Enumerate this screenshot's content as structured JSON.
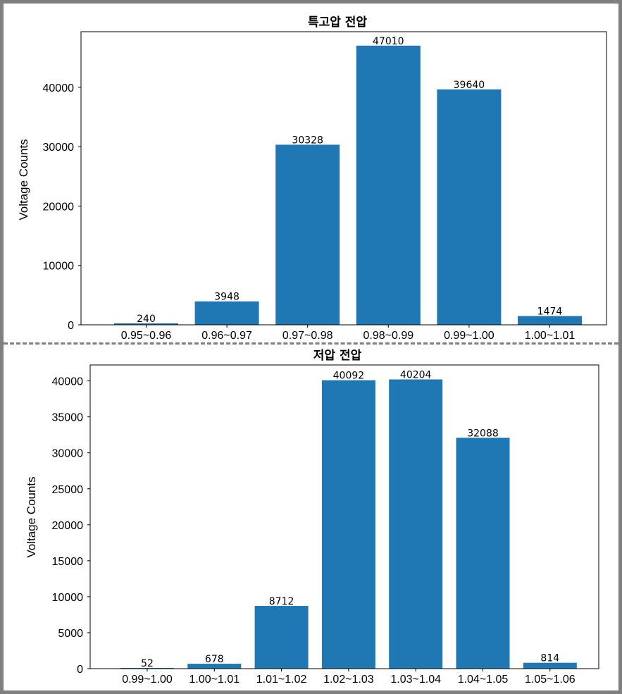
{
  "chart_data": [
    {
      "type": "bar",
      "title": "특고압 전압",
      "xlabel": "",
      "ylabel": "Voltage Counts",
      "categories": [
        "0.95~0.96",
        "0.96~0.97",
        "0.97~0.98",
        "0.98~0.99",
        "0.99~1.00",
        "1.00~1.01"
      ],
      "values": [
        240,
        3948,
        30328,
        47010,
        39640,
        1474
      ],
      "yticks": [
        0,
        10000,
        20000,
        30000,
        40000
      ],
      "ylim": [
        0,
        49360
      ],
      "bar_color": "#1f77b4",
      "grid": false
    },
    {
      "type": "bar",
      "title": "저압 전압",
      "xlabel": "",
      "ylabel": "Voltage Counts",
      "categories": [
        "0.99~1.00",
        "1.00~1.01",
        "1.01~1.02",
        "1.02~1.03",
        "1.03~1.04",
        "1.04~1.05",
        "1.05~1.06"
      ],
      "values": [
        52,
        678,
        8712,
        40092,
        40204,
        32088,
        814
      ],
      "yticks": [
        0,
        5000,
        10000,
        15000,
        20000,
        25000,
        30000,
        35000,
        40000
      ],
      "ylim": [
        0,
        42214
      ],
      "bar_color": "#1f77b4",
      "grid": false
    }
  ]
}
